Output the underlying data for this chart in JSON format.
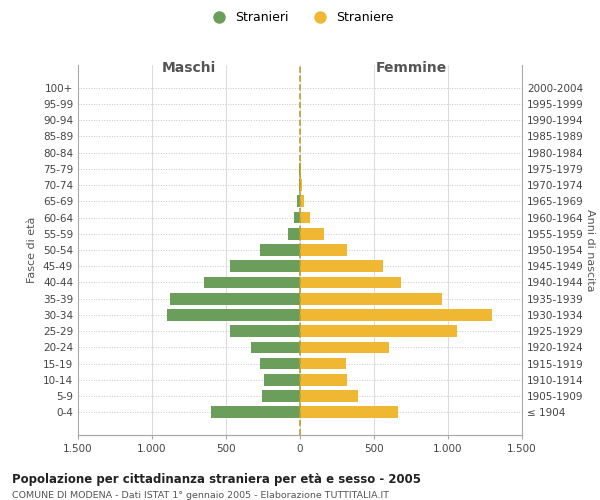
{
  "age_groups": [
    "100+",
    "95-99",
    "90-94",
    "85-89",
    "80-84",
    "75-79",
    "70-74",
    "65-69",
    "60-64",
    "55-59",
    "50-54",
    "45-49",
    "40-44",
    "35-39",
    "30-34",
    "25-29",
    "20-24",
    "15-19",
    "10-14",
    "5-9",
    "0-4"
  ],
  "birth_years": [
    "≤ 1904",
    "1905-1909",
    "1910-1914",
    "1915-1919",
    "1920-1924",
    "1925-1929",
    "1930-1934",
    "1935-1939",
    "1940-1944",
    "1945-1949",
    "1950-1954",
    "1955-1959",
    "1960-1964",
    "1965-1969",
    "1970-1974",
    "1975-1979",
    "1980-1984",
    "1985-1989",
    "1990-1994",
    "1995-1999",
    "2000-2004"
  ],
  "maschi": [
    0,
    0,
    0,
    0,
    0,
    5,
    10,
    20,
    40,
    80,
    270,
    470,
    650,
    880,
    900,
    470,
    330,
    270,
    240,
    260,
    600
  ],
  "femmine": [
    0,
    0,
    0,
    0,
    0,
    10,
    15,
    30,
    70,
    160,
    320,
    560,
    680,
    960,
    1300,
    1060,
    600,
    310,
    320,
    390,
    660
  ],
  "maschi_color": "#6a9e5a",
  "femmine_color": "#f0b832",
  "background_color": "#ffffff",
  "grid_color": "#cccccc",
  "grid_y_color": "#c8c8c8",
  "dashed_line_color": "#b8a030",
  "xlim": 1500,
  "title": "Popolazione per cittadinanza straniera per età e sesso - 2005",
  "subtitle": "COMUNE DI MODENA - Dati ISTAT 1° gennaio 2005 - Elaborazione TUTTITALIA.IT",
  "xlabel_maschi": "Maschi",
  "xlabel_femmine": "Femmine",
  "ylabel_left": "Fasce di età",
  "ylabel_right": "Anni di nascita",
  "legend_stranieri": "Stranieri",
  "legend_straniere": "Straniere",
  "xticks": [
    -1500,
    -1000,
    -500,
    0,
    500,
    1000,
    1500
  ],
  "xtick_labels": [
    "1.500",
    "1.000",
    "500",
    "0",
    "500",
    "1.000",
    "1.500"
  ]
}
